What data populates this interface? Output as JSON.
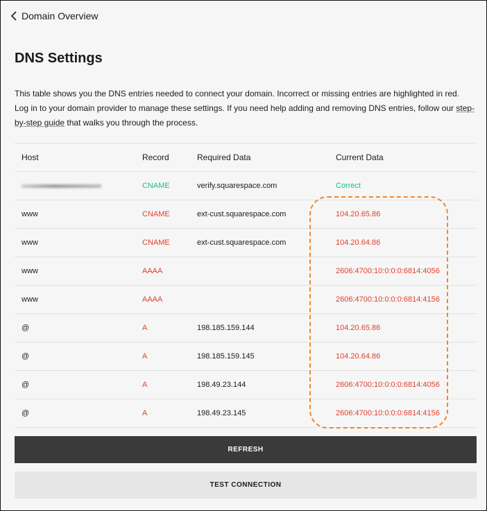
{
  "nav": {
    "back_label": "Domain Overview"
  },
  "page": {
    "title": "DNS Settings",
    "description_before": "This table shows you the DNS entries needed to connect your domain. Incorrect or missing entries are highlighted in red. Log in to your domain provider to manage these settings. If you need help adding and removing DNS entries, follow our ",
    "link_label": "step-by-step guide",
    "description_after": " that walks you through the process."
  },
  "table": {
    "headers": [
      "Host",
      "Record",
      "Required Data",
      "Current Data"
    ],
    "rows": [
      {
        "host": "",
        "host_redacted": true,
        "record": "CNAME",
        "required": "verify.squarespace.com",
        "current": "Correct",
        "status": "ok"
      },
      {
        "host": "www",
        "record": "CNAME",
        "required": "ext-cust.squarespace.com",
        "current": "104.20.65.86",
        "status": "error"
      },
      {
        "host": "www",
        "record": "CNAME",
        "required": "ext-cust.squarespace.com",
        "current": "104.20.64.86",
        "status": "error"
      },
      {
        "host": "www",
        "record": "AAAA",
        "required": "",
        "current": "2606:4700:10:0:0:0:6814:4056",
        "status": "error"
      },
      {
        "host": "www",
        "record": "AAAA",
        "required": "",
        "current": "2606:4700:10:0:0:0:6814:4156",
        "status": "error"
      },
      {
        "host": "@",
        "record": "A",
        "required": "198.185.159.144",
        "current": "104.20.65.86",
        "status": "error"
      },
      {
        "host": "@",
        "record": "A",
        "required": "198.185.159.145",
        "current": "104.20.64.86",
        "status": "error"
      },
      {
        "host": "@",
        "record": "A",
        "required": "198.49.23.144",
        "current": "2606:4700:10:0:0:0:6814:4056",
        "status": "error"
      },
      {
        "host": "@",
        "record": "A",
        "required": "198.49.23.145",
        "current": "2606:4700:10:0:0:0:6814:4156",
        "status": "error"
      }
    ]
  },
  "buttons": {
    "refresh": "REFRESH",
    "test": "TEST CONNECTION"
  },
  "colors": {
    "error": "#e0402e",
    "ok": "#1ebd86",
    "highlight": "#f0862b",
    "primary_button": "#3a3a3a"
  }
}
